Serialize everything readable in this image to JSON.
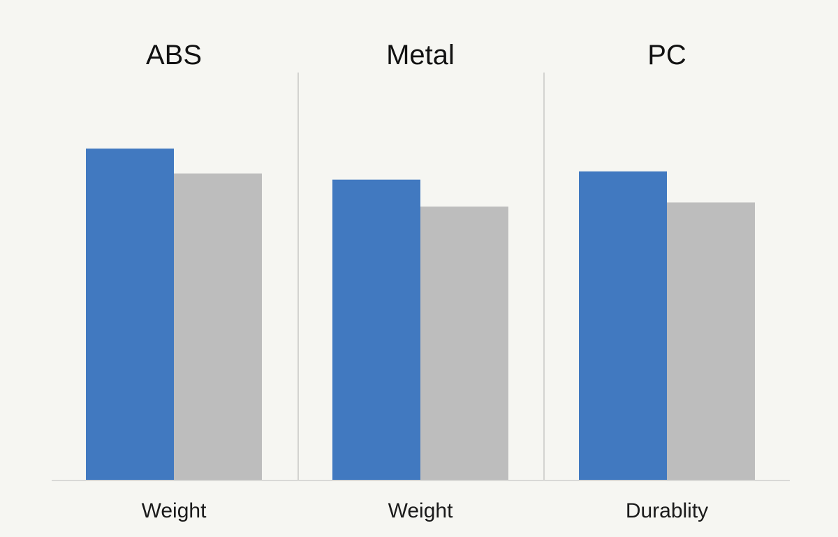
{
  "chart_data": {
    "type": "bar",
    "title": "",
    "ylim": [
      0,
      100
    ],
    "grid": false,
    "series_colors": [
      "#4179c0",
      "#bdbdbd"
    ],
    "panels": [
      {
        "title": "ABS",
        "xlabel": "Weight",
        "series": [
          {
            "values": [
              80
            ]
          },
          {
            "values": [
              74
            ]
          }
        ]
      },
      {
        "title": "Metal",
        "xlabel": "Weight",
        "series": [
          {
            "values": [
              72.5
            ]
          },
          {
            "values": [
              66
            ]
          }
        ]
      },
      {
        "title": "PC",
        "xlabel": "Durablity",
        "series": [
          {
            "values": [
              74.5
            ]
          },
          {
            "values": [
              67
            ]
          }
        ]
      }
    ]
  },
  "colors": {
    "background": "#f6f6f2",
    "baseline": "#d9d9d6",
    "divider": "#d3d3d0"
  }
}
